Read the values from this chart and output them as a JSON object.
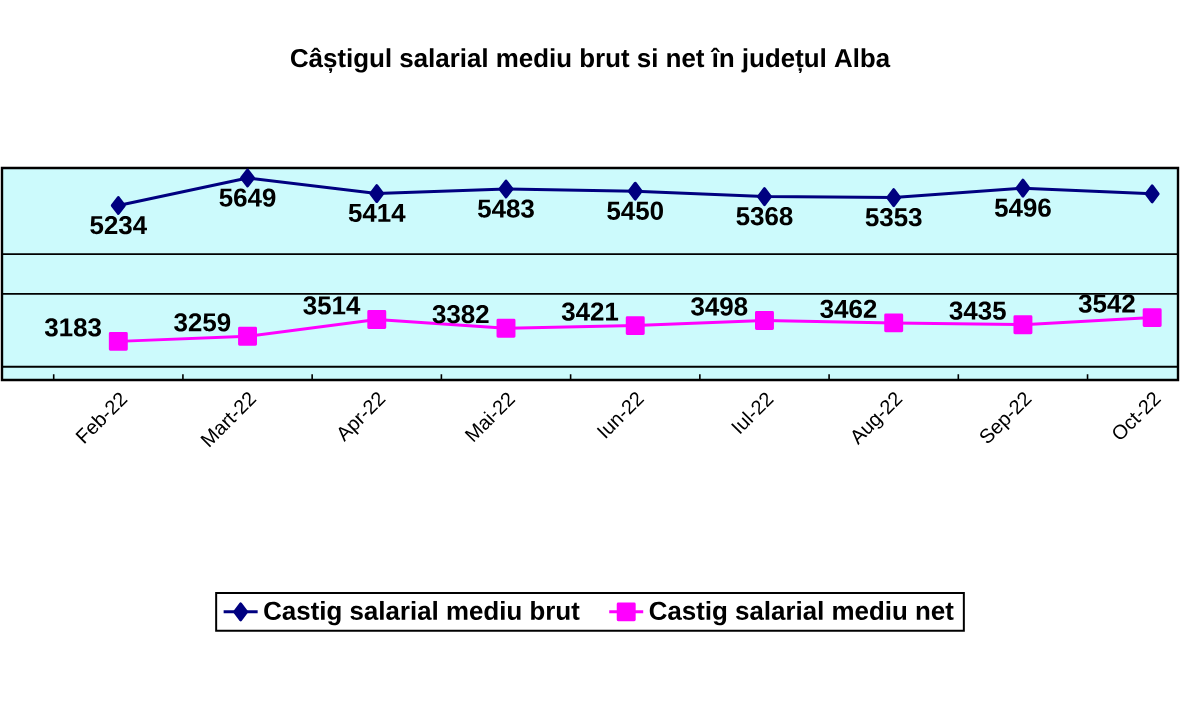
{
  "chart_data": {
    "type": "line",
    "title": "Câștigul salarial mediu brut si net în județul Alba",
    "categories": [
      "Feb-22",
      "Mart-22",
      "Apr-22",
      "Mai-22",
      "Iun-22",
      "Iul-22",
      "Aug-22",
      "Sep-22",
      "Oct-22"
    ],
    "series": [
      {
        "name": "Castig salarial mediu brut",
        "color": "#000080",
        "marker": "diamond",
        "values": [
          5234,
          5649,
          5414,
          5483,
          5450,
          5368,
          5353,
          5496,
          5410
        ],
        "value_labels": [
          "5234",
          "5649",
          "5414",
          "5483",
          "5450",
          "5368",
          "5353",
          "5496",
          null
        ]
      },
      {
        "name": "Castig salarial mediu net",
        "color": "#ff00ff",
        "marker": "square",
        "values": [
          3183,
          3259,
          3514,
          3382,
          3421,
          3498,
          3462,
          3435,
          3542
        ],
        "value_labels": [
          "3183",
          "3259",
          "3514",
          "3382",
          "3421",
          "3498",
          "3462",
          "3435",
          "3542"
        ]
      }
    ],
    "ylim": [
      2600,
      5800
    ],
    "yticks": [
      {
        "value": 2800,
        "label": null
      },
      {
        "value": 3900,
        "label": null
      },
      {
        "value": 4500,
        "label": null
      }
    ],
    "grid": "y",
    "legend": "bottom",
    "tick_labels": "x",
    "line_style": "solid"
  }
}
